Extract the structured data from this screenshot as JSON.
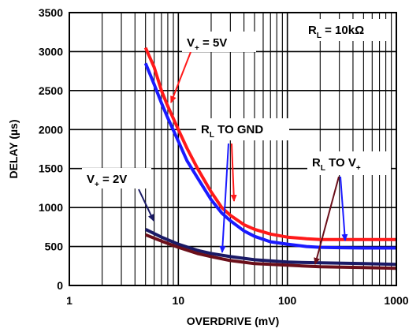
{
  "chart_data": {
    "type": "line",
    "title": "",
    "xlabel": "OVERDRIVE (mV)",
    "ylabel": "DELAY (µs)",
    "xscale": "log",
    "xlim": [
      1,
      1000
    ],
    "ylim": [
      0,
      3500
    ],
    "x_ticks": [
      "1",
      "10",
      "100",
      "1000"
    ],
    "y_ticks": [
      "0",
      "500",
      "1000",
      "1500",
      "2000",
      "2500",
      "3000",
      "3500"
    ],
    "grid": true,
    "colors": {
      "red": "#ff1a1a",
      "blue": "#1a1aff",
      "navy": "#1a1a66",
      "maroon": "#6b0f1a"
    },
    "series": [
      {
        "color": "red",
        "x": [
          5,
          6,
          7,
          8,
          10,
          12,
          15,
          20,
          25,
          30,
          40,
          50,
          70,
          100,
          150,
          200,
          300,
          500,
          700,
          1000
        ],
        "y": [
          3050,
          2800,
          2500,
          2300,
          2000,
          1760,
          1500,
          1200,
          1000,
          900,
          780,
          720,
          660,
          620,
          600,
          590,
          590,
          590,
          590,
          590
        ]
      },
      {
        "color": "blue",
        "x": [
          5,
          6,
          7,
          8,
          10,
          12,
          15,
          20,
          25,
          30,
          40,
          50,
          70,
          100,
          150,
          200,
          300,
          500,
          700,
          1000
        ],
        "y": [
          2850,
          2580,
          2340,
          2150,
          1850,
          1600,
          1380,
          1100,
          930,
          830,
          700,
          630,
          560,
          530,
          500,
          490,
          485,
          480,
          480,
          480
        ]
      },
      {
        "color": "navy",
        "x": [
          5,
          7,
          10,
          15,
          20,
          30,
          50,
          100,
          200,
          500,
          1000
        ],
        "y": [
          720,
          620,
          530,
          450,
          410,
          370,
          330,
          300,
          290,
          280,
          270
        ]
      },
      {
        "color": "maroon",
        "x": [
          5,
          7,
          10,
          15,
          20,
          30,
          50,
          100,
          200,
          500,
          1000
        ],
        "y": [
          650,
          570,
          490,
          410,
          370,
          320,
          280,
          260,
          240,
          230,
          220
        ]
      }
    ],
    "annotations": [
      {
        "id": "vplus5",
        "main": "V",
        "sub": "+",
        "rest": " = 5V"
      },
      {
        "id": "rl10k",
        "main": "R",
        "sub": "L",
        "rest": " = 10kΩ"
      },
      {
        "id": "rlgnd",
        "main": "R",
        "sub": "L",
        "rest": " TO GND"
      },
      {
        "id": "vplus2",
        "main": "V",
        "sub": "+",
        "rest": " = 2V"
      },
      {
        "id": "rltov",
        "main": "R",
        "sub": "L",
        "rest": " TO V",
        "sub2": "+"
      }
    ]
  }
}
